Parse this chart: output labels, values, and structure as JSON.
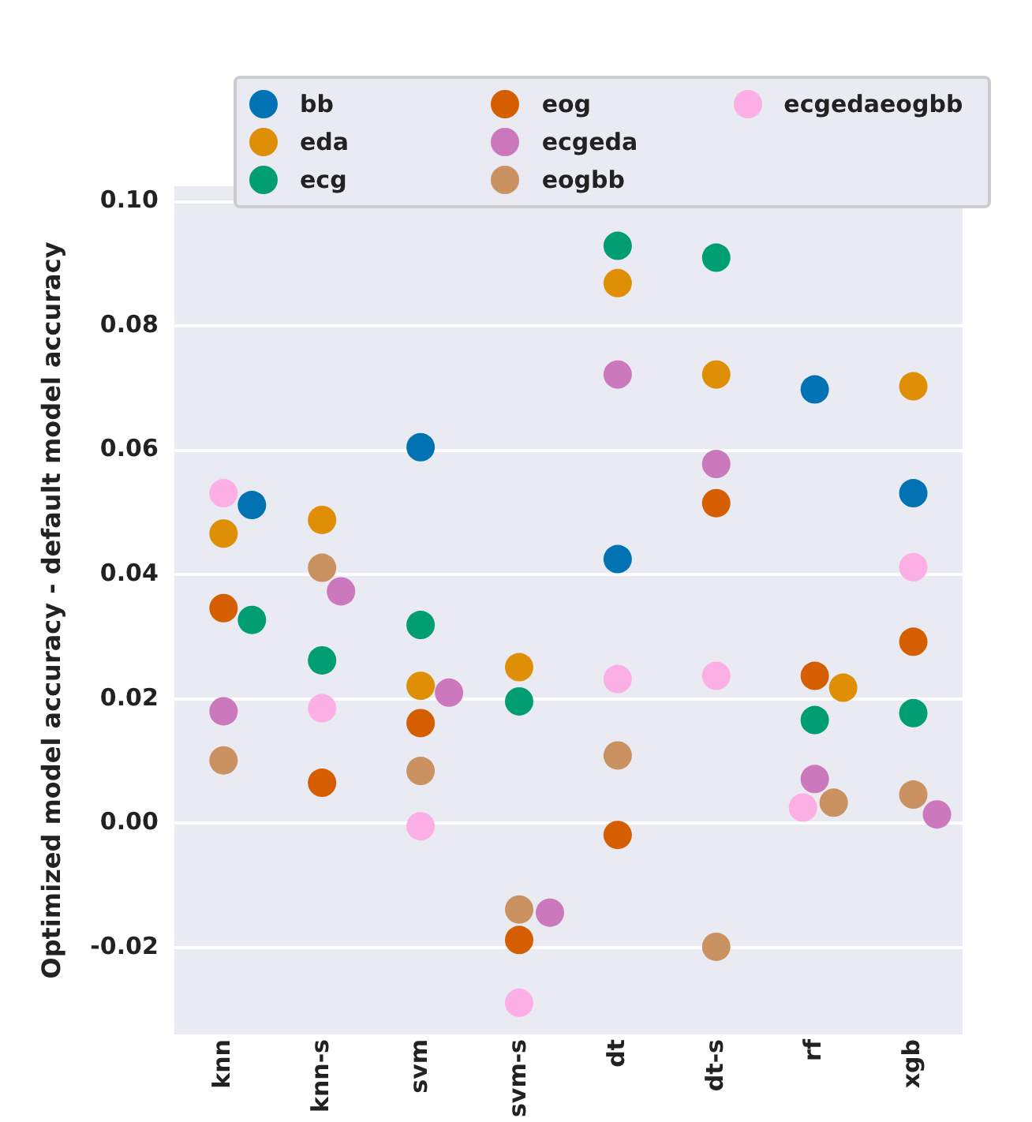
{
  "chart_data": {
    "type": "scatter",
    "ylabel": "Optimized model accuracy - default model accuracy",
    "categories": [
      "knn",
      "knn-s",
      "svm",
      "svm-s",
      "dt",
      "dt-s",
      "rf",
      "xgb"
    ],
    "ylim": [
      -0.034,
      0.1025
    ],
    "yticks": [
      {
        "value": -0.02,
        "label": "-0.02"
      },
      {
        "value": 0,
        "label": "0.00"
      },
      {
        "value": 0.02,
        "label": "0.02"
      },
      {
        "value": 0.04,
        "label": "0.04"
      },
      {
        "value": 0.06,
        "label": "0.06"
      },
      {
        "value": 0.08,
        "label": "0.08"
      },
      {
        "value": 0.1,
        "label": "0.10"
      }
    ],
    "grid": "y",
    "legend": "top",
    "marker": "circle",
    "series": [
      {
        "name": "bb",
        "color": "#0173b2",
        "values": [
          0.0512,
          null,
          0.0605,
          null,
          0.0425,
          null,
          0.0698,
          0.0531
        ]
      },
      {
        "name": "eda",
        "color": "#de8f05",
        "values": [
          0.0466,
          0.0488,
          0.0221,
          0.0251,
          0.0869,
          0.0722,
          0.0218,
          0.0703
        ]
      },
      {
        "name": "ecg",
        "color": "#029e73",
        "values": [
          0.0327,
          0.0262,
          0.0319,
          0.0196,
          0.0929,
          0.091,
          0.0166,
          0.0177
        ]
      },
      {
        "name": "eog",
        "color": "#d55e00",
        "values": [
          0.0346,
          0.0065,
          0.0161,
          -0.0188,
          -0.0019,
          0.0515,
          0.0237,
          0.0292
        ]
      },
      {
        "name": "ecgeda",
        "color": "#cc78bc",
        "values": [
          0.018,
          0.0373,
          0.021,
          -0.0144,
          0.0722,
          0.0578,
          0.0071,
          0.0014
        ]
      },
      {
        "name": "eogbb",
        "color": "#ca9161",
        "values": [
          0.0101,
          0.0411,
          0.0084,
          -0.0139,
          0.0109,
          -0.0199,
          0.0033,
          0.0046
        ]
      },
      {
        "name": "ecgedaeogbb",
        "color": "#fbafe4",
        "values": [
          0.0531,
          0.0185,
          -0.0005,
          -0.0289,
          0.0232,
          0.0237,
          0.0025,
          0.0412
        ]
      }
    ]
  }
}
